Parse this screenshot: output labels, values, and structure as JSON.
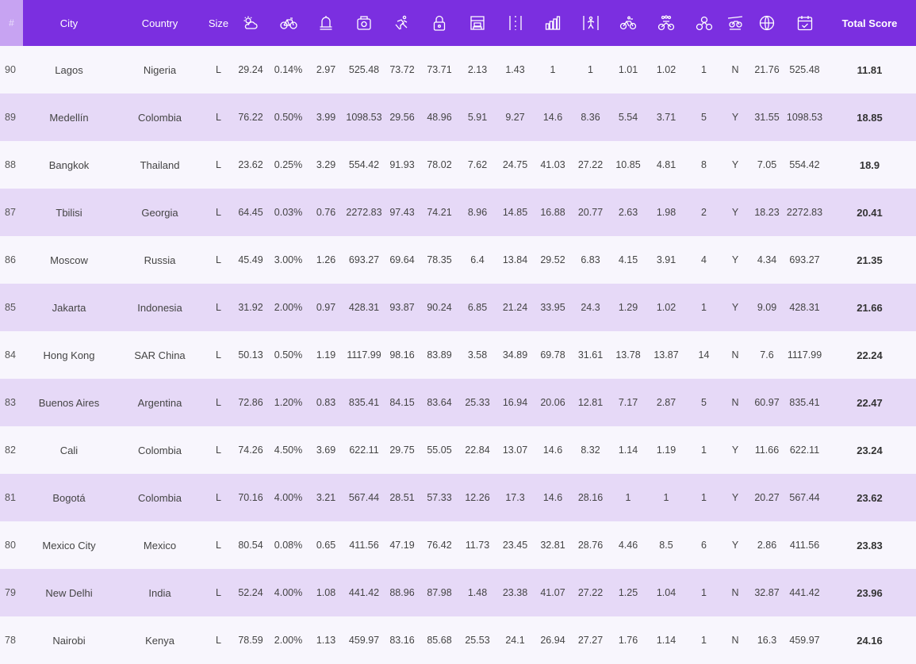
{
  "columns": {
    "rank": "#",
    "city": "City",
    "country": "Country",
    "size": "Size",
    "total": "Total Score",
    "icons": [
      "sun-cloud-icon",
      "bicycle-icon",
      "bell-icon",
      "cash-register-icon",
      "cyclist-icon",
      "padlock-icon",
      "storefront-icon",
      "road-lanes-icon",
      "bar-chart-icon",
      "pedestrian-crossing-icon",
      "bike-path-icon",
      "bike-crowd-icon",
      "bike-share-icon",
      "bike-shop-icon",
      "globe-icon",
      "calendar-check-icon"
    ]
  },
  "rows": [
    {
      "rank": "90",
      "city": "Lagos",
      "country": "Nigeria",
      "size": "L",
      "v": [
        "29.24",
        "0.14%",
        "2.97",
        "525.48",
        "73.72",
        "73.71",
        "2.13",
        "1.43",
        "1",
        "1",
        "1.01",
        "1.02",
        "1",
        "N",
        "21.76",
        "525.48"
      ],
      "total": "11.81"
    },
    {
      "rank": "89",
      "city": "Medellín",
      "country": "Colombia",
      "size": "L",
      "v": [
        "76.22",
        "0.50%",
        "3.99",
        "1098.53",
        "29.56",
        "48.96",
        "5.91",
        "9.27",
        "14.6",
        "8.36",
        "5.54",
        "3.71",
        "5",
        "Y",
        "31.55",
        "1098.53"
      ],
      "total": "18.85"
    },
    {
      "rank": "88",
      "city": "Bangkok",
      "country": "Thailand",
      "size": "L",
      "v": [
        "23.62",
        "0.25%",
        "3.29",
        "554.42",
        "91.93",
        "78.02",
        "7.62",
        "24.75",
        "41.03",
        "27.22",
        "10.85",
        "4.81",
        "8",
        "Y",
        "7.05",
        "554.42"
      ],
      "total": "18.9"
    },
    {
      "rank": "87",
      "city": "Tbilisi",
      "country": "Georgia",
      "size": "L",
      "v": [
        "64.45",
        "0.03%",
        "0.76",
        "2272.83",
        "97.43",
        "74.21",
        "8.96",
        "14.85",
        "16.88",
        "20.77",
        "2.63",
        "1.98",
        "2",
        "Y",
        "18.23",
        "2272.83"
      ],
      "total": "20.41"
    },
    {
      "rank": "86",
      "city": "Moscow",
      "country": "Russia",
      "size": "L",
      "v": [
        "45.49",
        "3.00%",
        "1.26",
        "693.27",
        "69.64",
        "78.35",
        "6.4",
        "13.84",
        "29.52",
        "6.83",
        "4.15",
        "3.91",
        "4",
        "Y",
        "4.34",
        "693.27"
      ],
      "total": "21.35"
    },
    {
      "rank": "85",
      "city": "Jakarta",
      "country": "Indonesia",
      "size": "L",
      "v": [
        "31.92",
        "2.00%",
        "0.97",
        "428.31",
        "93.87",
        "90.24",
        "6.85",
        "21.24",
        "33.95",
        "24.3",
        "1.29",
        "1.02",
        "1",
        "Y",
        "9.09",
        "428.31"
      ],
      "total": "21.66"
    },
    {
      "rank": "84",
      "city": "Hong Kong",
      "country": "SAR China",
      "size": "L",
      "v": [
        "50.13",
        "0.50%",
        "1.19",
        "1117.99",
        "98.16",
        "83.89",
        "3.58",
        "34.89",
        "69.78",
        "31.61",
        "13.78",
        "13.87",
        "14",
        "N",
        "7.6",
        "1117.99"
      ],
      "total": "22.24"
    },
    {
      "rank": "83",
      "city": "Buenos Aires",
      "country": "Argentina",
      "size": "L",
      "v": [
        "72.86",
        "1.20%",
        "0.83",
        "835.41",
        "84.15",
        "83.64",
        "25.33",
        "16.94",
        "20.06",
        "12.81",
        "7.17",
        "2.87",
        "5",
        "N",
        "60.97",
        "835.41"
      ],
      "total": "22.47"
    },
    {
      "rank": "82",
      "city": "Cali",
      "country": "Colombia",
      "size": "L",
      "v": [
        "74.26",
        "4.50%",
        "3.69",
        "622.11",
        "29.75",
        "55.05",
        "22.84",
        "13.07",
        "14.6",
        "8.32",
        "1.14",
        "1.19",
        "1",
        "Y",
        "11.66",
        "622.11"
      ],
      "total": "23.24"
    },
    {
      "rank": "81",
      "city": "Bogotá",
      "country": "Colombia",
      "size": "L",
      "v": [
        "70.16",
        "4.00%",
        "3.21",
        "567.44",
        "28.51",
        "57.33",
        "12.26",
        "17.3",
        "14.6",
        "28.16",
        "1",
        "1",
        "1",
        "Y",
        "20.27",
        "567.44"
      ],
      "total": "23.62"
    },
    {
      "rank": "80",
      "city": "Mexico City",
      "country": "Mexico",
      "size": "L",
      "v": [
        "80.54",
        "0.08%",
        "0.65",
        "411.56",
        "47.19",
        "76.42",
        "11.73",
        "23.45",
        "32.81",
        "28.76",
        "4.46",
        "8.5",
        "6",
        "Y",
        "2.86",
        "411.56"
      ],
      "total": "23.83"
    },
    {
      "rank": "79",
      "city": "New Delhi",
      "country": "India",
      "size": "L",
      "v": [
        "52.24",
        "4.00%",
        "1.08",
        "441.42",
        "88.96",
        "87.98",
        "1.48",
        "23.38",
        "41.07",
        "27.22",
        "1.25",
        "1.04",
        "1",
        "N",
        "32.87",
        "441.42"
      ],
      "total": "23.96"
    },
    {
      "rank": "78",
      "city": "Nairobi",
      "country": "Kenya",
      "size": "L",
      "v": [
        "78.59",
        "2.00%",
        "1.13",
        "459.97",
        "83.16",
        "85.68",
        "25.53",
        "24.1",
        "26.94",
        "27.27",
        "1.76",
        "1.14",
        "1",
        "N",
        "16.3",
        "459.97"
      ],
      "total": "24.16"
    }
  ]
}
